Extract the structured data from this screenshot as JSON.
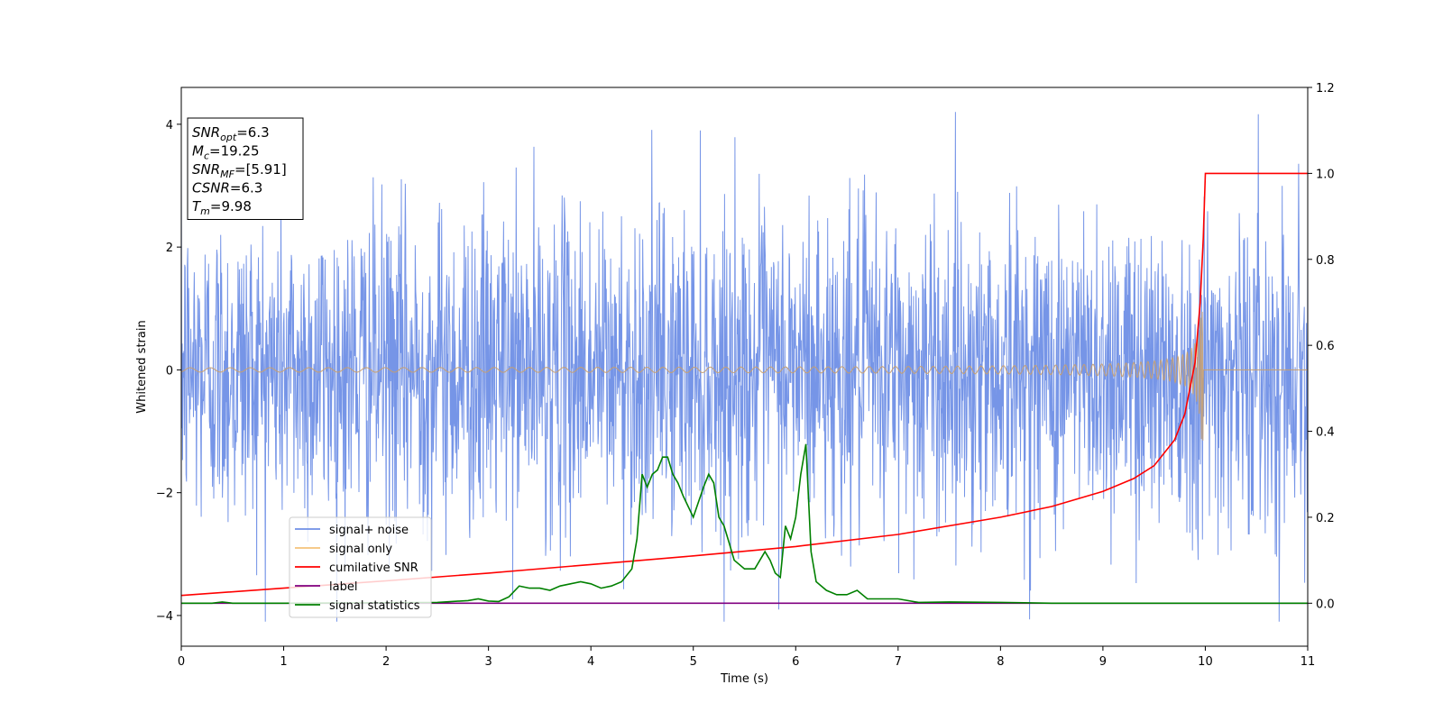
{
  "chart_data": {
    "type": "line",
    "xlabel": "Time (s)",
    "ylabel": "Whitened strain",
    "xlim": [
      0,
      11
    ],
    "ylim": [
      -4.5,
      4.6
    ],
    "y2lim": [
      -0.1,
      1.2
    ],
    "x_ticks": [
      "0",
      "1",
      "2",
      "3",
      "4",
      "5",
      "6",
      "7",
      "8",
      "9",
      "10",
      "11"
    ],
    "y_ticks": [
      "−4",
      "−2",
      "0",
      "2",
      "4"
    ],
    "y2_ticks": [
      "0.0",
      "0.2",
      "0.4",
      "0.6",
      "0.8",
      "1.0",
      "1.2"
    ],
    "info_box": [
      {
        "main": "SNR",
        "sub": "opt",
        "value": "=6.3"
      },
      {
        "main": "M",
        "sub": "c",
        "value": "=19.25"
      },
      {
        "main": "SNR",
        "sub": "MF",
        "value": "=[5.91]"
      },
      {
        "main": "CSNR",
        "sub": "",
        "value": "=6.3"
      },
      {
        "main": "T",
        "sub": "m",
        "value": "=9.98"
      }
    ],
    "legend": {
      "placement": "lower-left",
      "entries": [
        {
          "label": "signal+ noise",
          "color": "#6f8fe6"
        },
        {
          "label": "signal only",
          "color": "#f5c27a"
        },
        {
          "label": "cumilative SNR",
          "color": "#ff0000"
        },
        {
          "label": "label",
          "color": "#800080"
        },
        {
          "label": "signal statistics",
          "color": "#008000"
        }
      ]
    },
    "series": [
      {
        "name": "signal+ noise",
        "axis": "left",
        "kind": "noise",
        "color": "#6f8fe6",
        "amplitude_typical": 1.3,
        "range": [
          -4.1,
          4.2
        ]
      },
      {
        "name": "signal only",
        "axis": "left",
        "kind": "chirp",
        "color": "#c8a070",
        "merger_time": 9.98,
        "peak_amplitude": 1.15
      },
      {
        "name": "cumilative SNR",
        "axis": "right",
        "color": "#ff0000",
        "x": [
          0,
          1,
          2,
          3,
          4,
          5,
          6,
          7,
          8,
          8.5,
          9,
          9.3,
          9.5,
          9.7,
          9.8,
          9.9,
          9.95,
          9.98,
          10,
          11
        ],
        "y": [
          0.018,
          0.035,
          0.052,
          0.07,
          0.09,
          0.11,
          0.132,
          0.16,
          0.2,
          0.225,
          0.26,
          0.29,
          0.32,
          0.38,
          0.44,
          0.56,
          0.7,
          0.85,
          1.0,
          1.0
        ]
      },
      {
        "name": "label",
        "axis": "right",
        "color": "#800080",
        "x": [
          0,
          11
        ],
        "y": [
          0,
          0
        ]
      },
      {
        "name": "signal statistics",
        "axis": "right",
        "color": "#008000",
        "x": [
          0,
          0.3,
          0.4,
          0.5,
          1,
          2,
          2.5,
          2.8,
          2.9,
          3.0,
          3.1,
          3.2,
          3.3,
          3.4,
          3.5,
          3.6,
          3.7,
          3.8,
          3.9,
          4.0,
          4.1,
          4.2,
          4.3,
          4.4,
          4.45,
          4.5,
          4.55,
          4.6,
          4.65,
          4.7,
          4.75,
          4.8,
          4.85,
          4.9,
          5.0,
          5.1,
          5.15,
          5.2,
          5.25,
          5.3,
          5.35,
          5.4,
          5.5,
          5.6,
          5.7,
          5.75,
          5.8,
          5.85,
          5.9,
          5.95,
          6.0,
          6.05,
          6.1,
          6.15,
          6.2,
          6.3,
          6.4,
          6.5,
          6.6,
          6.7,
          6.8,
          6.9,
          7.0,
          7.2,
          7.5,
          8,
          8.5,
          9,
          11
        ],
        "y": [
          0,
          0.0,
          0.003,
          0.0,
          0.0,
          0.001,
          0.002,
          0.006,
          0.01,
          0.005,
          0.004,
          0.015,
          0.04,
          0.035,
          0.035,
          0.03,
          0.04,
          0.045,
          0.05,
          0.045,
          0.035,
          0.04,
          0.05,
          0.08,
          0.15,
          0.3,
          0.27,
          0.3,
          0.31,
          0.34,
          0.34,
          0.3,
          0.28,
          0.25,
          0.2,
          0.27,
          0.3,
          0.28,
          0.2,
          0.18,
          0.14,
          0.1,
          0.08,
          0.08,
          0.12,
          0.1,
          0.07,
          0.06,
          0.18,
          0.15,
          0.2,
          0.3,
          0.37,
          0.12,
          0.05,
          0.03,
          0.02,
          0.02,
          0.03,
          0.01,
          0.01,
          0.01,
          0.01,
          0.002,
          0.003,
          0.002,
          0.0,
          0.0,
          0.0
        ]
      }
    ]
  }
}
